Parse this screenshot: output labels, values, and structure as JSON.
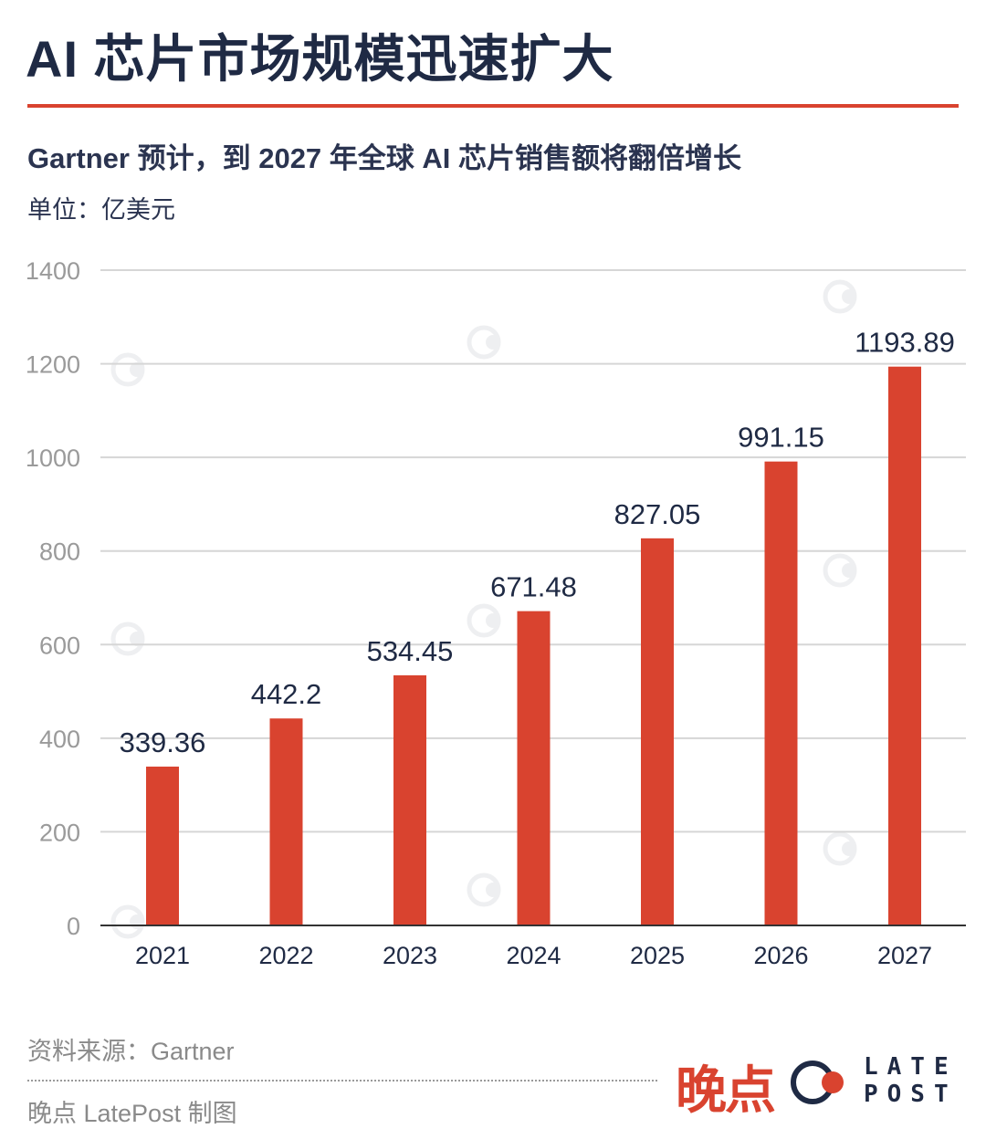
{
  "header": {
    "title": "AI 芯片市场规模迅速扩大",
    "subtitle": "Gartner 预计，到 2027 年全球 AI 芯片销售额将翻倍增长",
    "unit": "单位：亿美元"
  },
  "chart_data": {
    "type": "bar",
    "categories": [
      "2021",
      "2022",
      "2023",
      "2024",
      "2025",
      "2026",
      "2027"
    ],
    "values": [
      339.36,
      442.2,
      534.45,
      671.48,
      827.05,
      991.15,
      1193.89
    ],
    "data_labels": [
      "339.36",
      "442.2",
      "534.45",
      "671.48",
      "827.05",
      "991.15",
      "1193.89"
    ],
    "yticks": [
      0,
      200,
      400,
      600,
      800,
      1000,
      1200,
      1400
    ],
    "ylim": [
      0,
      1400
    ],
    "grid": true,
    "bar_color": "#d9432f",
    "title": "",
    "xlabel": "",
    "ylabel": ""
  },
  "footer": {
    "source": "资料来源：Gartner",
    "credit": "晚点 LatePost 制图"
  },
  "brand": {
    "name_cn": "晚点",
    "name_en_line1": "LATE",
    "name_en_line2": "POST",
    "accent": "#d9432f",
    "ink": "#1f2a44"
  }
}
